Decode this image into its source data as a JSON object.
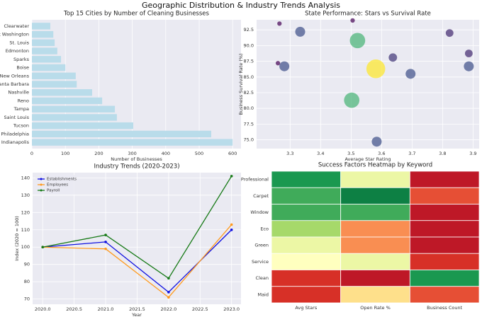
{
  "title": "Geographic Distribution & Industry Trends Analysis",
  "chart_data": [
    {
      "type": "barh",
      "title": "Top 15 Cities by Number of Cleaning Businesses",
      "xlabel": "Number of Businesses",
      "categories": [
        "Clearwater",
        "Fort Washington",
        "St. Louis",
        "Edmonton",
        "Sparks",
        "Boise",
        "New Orleans",
        "Santa Barbara",
        "Nashville",
        "Reno",
        "Tampa",
        "Saint Louis",
        "Tucson",
        "Philadelphia",
        "Indianapolis"
      ],
      "values": [
        55,
        64,
        68,
        76,
        87,
        100,
        131,
        134,
        180,
        210,
        248,
        254,
        303,
        536,
        600
      ],
      "color": "#b9dcea",
      "xlim": [
        0,
        625
      ],
      "xticks": [
        0,
        100,
        200,
        300,
        400,
        500,
        600
      ],
      "grid": true
    },
    {
      "type": "scatter",
      "title": "State Performance: Stars vs Survival Rate",
      "xlabel": "Average Star Rating",
      "ylabel": "Business Survival Rate (%)",
      "x": [
        3.265,
        3.333,
        3.505,
        3.521,
        3.823,
        3.886,
        3.637,
        3.26,
        3.281,
        3.581,
        3.695,
        3.886,
        3.502,
        3.584
      ],
      "y": [
        93.5,
        92.2,
        94.0,
        90.8,
        92.0,
        88.75,
        88.1,
        87.2,
        86.7,
        86.3,
        85.5,
        86.7,
        81.3,
        74.7
      ],
      "sizes": [
        5,
        25,
        5,
        60,
        15,
        15,
        18,
        5,
        25,
        90,
        25,
        25,
        60,
        25
      ],
      "colormap": "viridis",
      "xlim": [
        3.19,
        3.92
      ],
      "xticks": [
        3.3,
        3.4,
        3.5,
        3.6,
        3.7,
        3.8,
        3.9
      ],
      "ylim": [
        73.6,
        94.1
      ],
      "yticks": [
        {
          "value": 75,
          "label": "75.0"
        },
        77.5,
        {
          "value": 80,
          "label": "80.0"
        },
        82.5,
        {
          "value": 85,
          "label": "85.0"
        },
        87.5,
        {
          "value": 90,
          "label": "90.0"
        },
        92.5
      ],
      "grid": true
    },
    {
      "type": "line",
      "title": "Industry Trends (2020-2023)",
      "xlabel": "Year",
      "ylabel": "Index (2020 = 100)",
      "x": [
        2020,
        2021,
        2022,
        2023
      ],
      "series": [
        {
          "name": "Establishments",
          "color": "#1010e0",
          "values": [
            100,
            103,
            74,
            110
          ]
        },
        {
          "name": "Employees",
          "color": "#ff9a1e",
          "values": [
            100,
            99,
            71,
            113
          ]
        },
        {
          "name": "Payroll",
          "color": "#177a17",
          "values": [
            100,
            107,
            82,
            141
          ]
        }
      ],
      "xlim": [
        2019.84,
        2023.15
      ],
      "xticks": [
        {
          "value": 2020,
          "label": "2020.0"
        },
        2020.5,
        {
          "value": 2021,
          "label": "2021.0"
        },
        2021.5,
        {
          "value": 2022,
          "label": "2022.0"
        },
        2022.5,
        {
          "value": 2023,
          "label": "2023.0"
        }
      ],
      "ylim": [
        67,
        143
      ],
      "yticks": [
        70,
        80,
        90,
        100,
        110,
        120,
        130,
        140
      ],
      "grid": true,
      "legend": "upper left"
    },
    {
      "type": "heatmap",
      "title": "Success Factors Heatmap by Keyword",
      "rows": [
        "Professional",
        "Carpet",
        "Window",
        "Eco",
        "Green",
        "Service",
        "Clean",
        "Maid"
      ],
      "columns": [
        "Avg Stars",
        "Open Rate %",
        "Business Count"
      ],
      "values": [
        [
          0.9,
          0.55,
          0.05
        ],
        [
          0.85,
          0.95,
          0.15
        ],
        [
          0.85,
          0.85,
          0.05
        ],
        [
          0.7,
          0.25,
          0.05
        ],
        [
          0.55,
          0.25,
          0.05
        ],
        [
          0.5,
          0.55,
          0.1
        ],
        [
          0.1,
          0.05,
          0.9
        ],
        [
          0.1,
          0.4,
          0.15
        ]
      ],
      "colormap": "RdYlGn"
    }
  ]
}
